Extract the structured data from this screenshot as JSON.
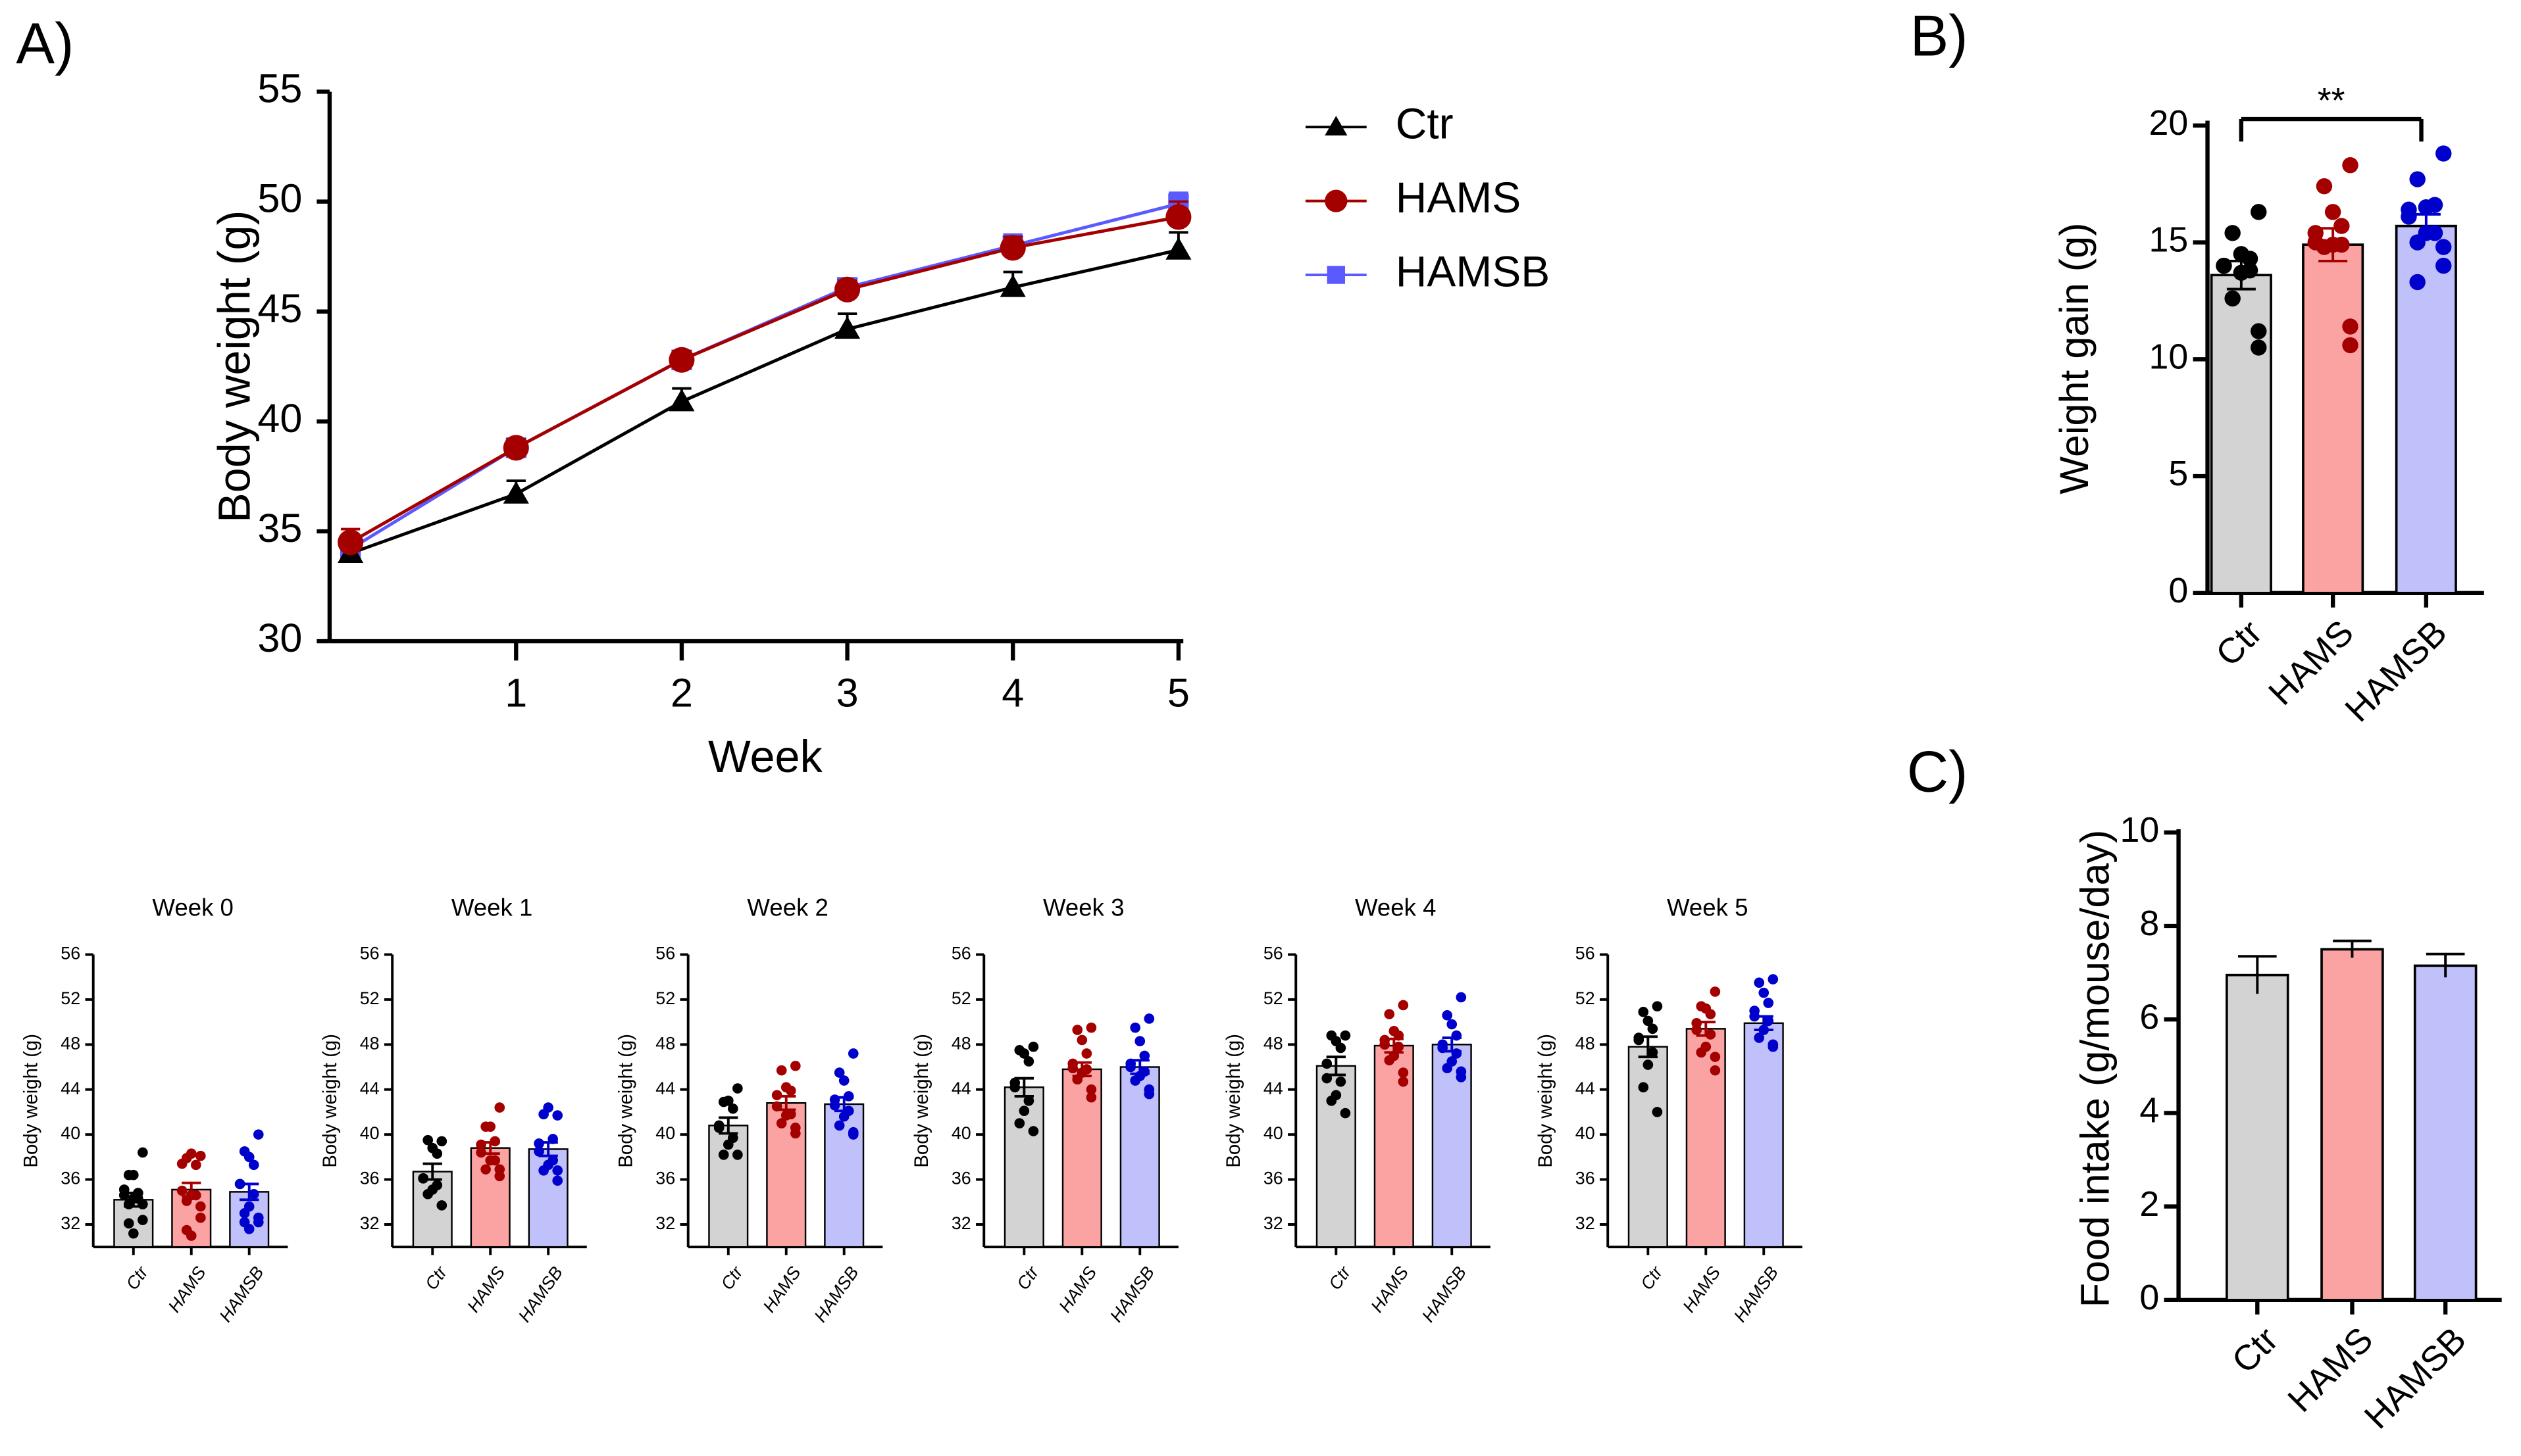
{
  "colors": {
    "Ctr": "#000000",
    "HAMS": "#a50000",
    "HAMSB": "#0000cc",
    "HAMSB_line": "#5a5aff",
    "bar_Ctr": "#d3d3d3",
    "bar_HAMS": "#fba3a3",
    "bar_HAMSB": "#c0c0fb"
  },
  "chart_data": [
    {
      "id": "A",
      "panel_label": "A)",
      "type": "line",
      "xlabel": "Week",
      "ylabel": "Body weight (g)",
      "ylim": [
        30,
        55
      ],
      "yticks": [
        "30",
        "35",
        "40",
        "45",
        "50",
        "55"
      ],
      "x": [
        0,
        1,
        2,
        3,
        4,
        5
      ],
      "xticks": [
        "1",
        "2",
        "3",
        "4",
        "5"
      ],
      "legend_position": "top-right",
      "series": [
        {
          "name": "Ctr",
          "marker": "triangle",
          "values": [
            34.0,
            36.7,
            40.9,
            44.2,
            46.1,
            47.8
          ],
          "sem": [
            0.5,
            0.6,
            0.6,
            0.7,
            0.7,
            0.8
          ]
        },
        {
          "name": "HAMS",
          "marker": "circle",
          "values": [
            34.5,
            38.8,
            42.8,
            46.0,
            47.9,
            49.3
          ],
          "sem": [
            0.6,
            0.4,
            0.4,
            0.4,
            0.5,
            0.7
          ]
        },
        {
          "name": "HAMSB",
          "marker": "square",
          "values": [
            34.2,
            38.8,
            42.8,
            46.1,
            48.0,
            49.9
          ],
          "sem": [
            0.5,
            0.4,
            0.4,
            0.4,
            0.5,
            0.5
          ]
        }
      ]
    },
    {
      "id": "B",
      "panel_label": "B)",
      "type": "bar",
      "ylabel": "Weight gain (g)",
      "ylim": [
        0,
        20
      ],
      "yticks": [
        "0",
        "5",
        "10",
        "15",
        "20"
      ],
      "categories": [
        "Ctr",
        "HAMS",
        "HAMSB"
      ],
      "values": [
        13.6,
        14.9,
        15.7
      ],
      "sem": [
        0.6,
        0.7,
        0.5
      ],
      "points": [
        [
          16.3,
          15.4,
          14.5,
          14.3,
          14.0,
          14.0,
          13.8,
          13.7,
          12.6,
          11.2,
          10.5
        ],
        [
          18.3,
          17.4,
          16.3,
          15.7,
          15.4,
          15.0,
          14.9,
          14.9,
          14.8,
          11.4,
          10.6
        ],
        [
          18.8,
          17.7,
          16.5,
          16.6,
          16.4,
          16.1,
          15.4,
          15.4,
          15.0,
          14.8,
          14.0,
          13.3
        ]
      ],
      "significance": {
        "between": [
          "Ctr",
          "HAMSB"
        ],
        "label": "**"
      }
    },
    {
      "id": "C",
      "panel_label": "C)",
      "type": "bar",
      "ylabel": "Food intake (g/mouse/day)",
      "ylim": [
        0,
        10
      ],
      "yticks": [
        "0",
        "2",
        "4",
        "6",
        "8",
        "10"
      ],
      "categories": [
        "Ctr",
        "HAMS",
        "HAMSB"
      ],
      "values": [
        6.95,
        7.5,
        7.15
      ],
      "sem": [
        0.4,
        0.18,
        0.25
      ]
    },
    {
      "id": "weeks",
      "type": "bar",
      "ylabel": "Body weight (g)",
      "ylim": [
        30,
        56
      ],
      "yticks": [
        "32",
        "36",
        "40",
        "44",
        "48",
        "52",
        "56"
      ],
      "categories": [
        "Ctr",
        "HAMS",
        "HAMSB"
      ],
      "panels": [
        {
          "title": "Week 0",
          "values": [
            34.2,
            35.1,
            34.9
          ],
          "sem": [
            0.6,
            0.6,
            0.7
          ],
          "points": [
            [
              38.4,
              36.4,
              36.4,
              34.8,
              34.6,
              35.1,
              34.3,
              34.3,
              33.8,
              33.8,
              32.4,
              32.1,
              31.2
            ],
            [
              38.1,
              37.9,
              38.3,
              37.3,
              37.4,
              35.0,
              34.6,
              34.6,
              34.1,
              33.6,
              32.6,
              31.5,
              31.0
            ],
            [
              40.0,
              38.5,
              38.0,
              37.3,
              35.6,
              35.6,
              34.7,
              33.6,
              33.0,
              32.6,
              32.2,
              32.2,
              31.6
            ]
          ]
        },
        {
          "title": "Week 1",
          "values": [
            36.7,
            38.8,
            38.7
          ],
          "sem": [
            0.7,
            0.5,
            0.6
          ],
          "points": [
            [
              39.4,
              39.5,
              38.8,
              38.3,
              36.1,
              36.1,
              35.5,
              35.1,
              34.7,
              33.7
            ],
            [
              42.4,
              40.7,
              40.7,
              39.4,
              39.1,
              38.4,
              37.7,
              37.7,
              36.9,
              36.9,
              36.3
            ],
            [
              41.7,
              41.8,
              42.4,
              39.6,
              39.2,
              38.5,
              37.7,
              37.3,
              36.8,
              36.8,
              35.9
            ]
          ]
        },
        {
          "title": "Week 2",
          "values": [
            40.8,
            42.8,
            42.7
          ],
          "sem": [
            0.7,
            0.6,
            0.6
          ],
          "points": [
            [
              44.1,
              42.9,
              43.0,
              42.3,
              40.8,
              40.6,
              39.7,
              39.1,
              38.2,
              38.2
            ],
            [
              46.1,
              45.7,
              44.2,
              43.9,
              43.5,
              42.5,
              41.8,
              41.7,
              41.0,
              40.6,
              40.1
            ],
            [
              47.2,
              45.5,
              44.8,
              43.4,
              43.1,
              42.6,
              42.1,
              41.6,
              40.8,
              40.0,
              40.2
            ]
          ]
        },
        {
          "title": "Week 3",
          "values": [
            44.2,
            45.8,
            46.0
          ],
          "sem": [
            0.8,
            0.6,
            0.6
          ],
          "points": [
            [
              47.8,
              47.5,
              47.2,
              46.5,
              44.6,
              44.2,
              43.0,
              42.1,
              41.0,
              40.3
            ],
            [
              49.5,
              49.3,
              48.4,
              47.2,
              46.3,
              45.9,
              45.8,
              45.5,
              44.9,
              44.0,
              43.3
            ],
            [
              50.3,
              49.5,
              48.3,
              47.0,
              46.3,
              46.0,
              45.6,
              45.2,
              44.8,
              44.0,
              43.6
            ]
          ]
        },
        {
          "title": "Week 4",
          "values": [
            46.1,
            47.9,
            48.0
          ],
          "sem": [
            0.8,
            0.6,
            0.6
          ],
          "points": [
            [
              48.8,
              48.8,
              48.3,
              47.7,
              46.3,
              45.0,
              44.7,
              43.5,
              43.0,
              41.9
            ],
            [
              51.5,
              50.7,
              49.2,
              48.8,
              48.4,
              48.0,
              47.8,
              47.0,
              46.6,
              45.5,
              44.7
            ],
            [
              52.2,
              50.6,
              49.8,
              48.8,
              48.0,
              47.7,
              47.2,
              46.5,
              45.9,
              45.1,
              45.6
            ]
          ]
        },
        {
          "title": "Week 5",
          "values": [
            47.8,
            49.4,
            49.9
          ],
          "sem": [
            0.9,
            0.6,
            0.6
          ],
          "points": [
            [
              51.4,
              50.9,
              50.1,
              49.4,
              48.6,
              48.4,
              47.3,
              46.2,
              44.2,
              42.0
            ],
            [
              52.7,
              51.4,
              51.2,
              50.7,
              49.9,
              49.3,
              48.9,
              47.8,
              47.3,
              46.9,
              45.7
            ],
            [
              53.8,
              53.5,
              52.6,
              51.7,
              51.0,
              50.5,
              50.1,
              49.3,
              48.6,
              48.0,
              47.8
            ]
          ]
        }
      ]
    }
  ]
}
